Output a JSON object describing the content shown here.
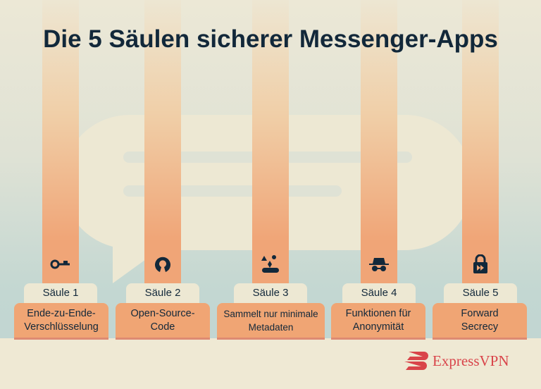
{
  "title": "Die 5 Säulen sicherer Messenger-Apps",
  "pillars": [
    {
      "tag": "Säule 1",
      "label": "Ende-zu-Ende-Verschlüsselung",
      "icon": "key-icon"
    },
    {
      "tag": "Säule 2",
      "label": "Open-Source-Code",
      "icon": "open-source-icon"
    },
    {
      "tag": "Säule 3",
      "label": "Sammelt nur minimale Metadaten",
      "icon": "data-shapes-icon"
    },
    {
      "tag": "Säule 4",
      "label": "Funktionen für Anonymität",
      "icon": "incognito-icon"
    },
    {
      "tag": "Säule 5",
      "label": "Forward Secrecy",
      "icon": "lock-forward-icon"
    }
  ],
  "logo": {
    "text": "ExpressVPN"
  },
  "colors": {
    "title": "#12283a",
    "pillar": "#f0a574",
    "brand": "#d9444a",
    "bubble": "#ede8d3"
  }
}
